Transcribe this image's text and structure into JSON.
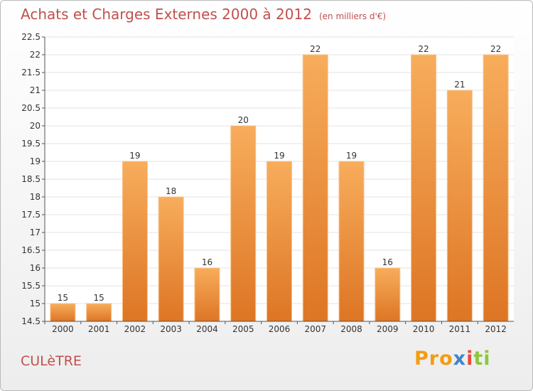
{
  "title": "Achats et Charges Externes 2000 à 2012",
  "unit": "(en milliers d'€)",
  "commune": "CULèTRE",
  "logo": {
    "p1": "Pro",
    "p2": "x",
    "p3": "i",
    "p4": "ti"
  },
  "colors": {
    "bar": "#f0923a",
    "bar_top": "#f7ad5c",
    "bar_bottom": "#dd7524",
    "title": "#c0504d"
  },
  "chart_data": {
    "type": "bar",
    "title": "Achats et Charges Externes 2000 à 2012",
    "xlabel": "",
    "ylabel": "",
    "categories": [
      "2000",
      "2001",
      "2002",
      "2003",
      "2004",
      "2005",
      "2006",
      "2007",
      "2008",
      "2009",
      "2010",
      "2011",
      "2012"
    ],
    "values": [
      15,
      15,
      19,
      18,
      16,
      20,
      19,
      22,
      19,
      16,
      22,
      21,
      22
    ],
    "ylim": [
      14.5,
      22.5
    ],
    "yticks": [
      14.5,
      15,
      15.5,
      16,
      16.5,
      17,
      17.5,
      18,
      18.5,
      19,
      19.5,
      20,
      20.5,
      21,
      21.5,
      22,
      22.5
    ],
    "ytick_labels": [
      "14.5",
      "15",
      "15.5",
      "16",
      "16.5",
      "17",
      "17.5",
      "18",
      "18.5",
      "19",
      "19.5",
      "20",
      "20.5",
      "21",
      "21.5",
      "22",
      "22.5"
    ],
    "grid": true,
    "legend": "none"
  }
}
